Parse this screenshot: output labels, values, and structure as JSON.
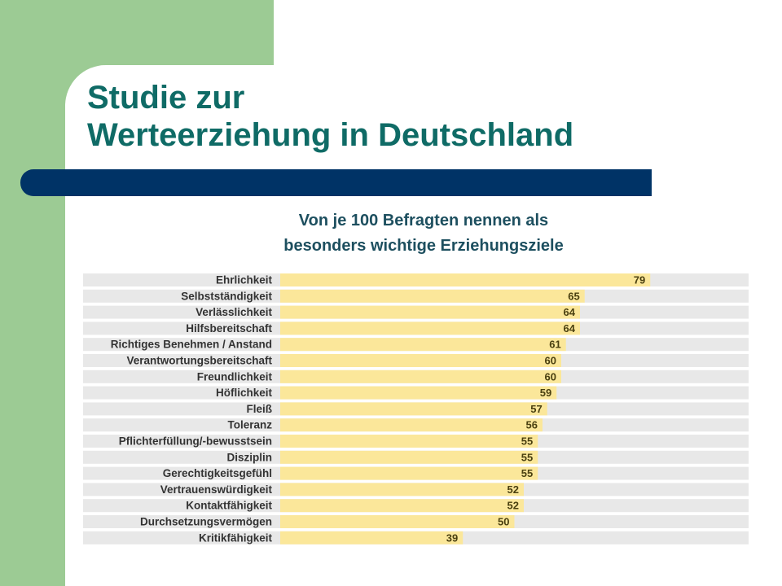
{
  "title_lines": [
    "Studie zur",
    "Werteerziehung in Deutschland"
  ],
  "subtitle_lines": [
    "Von je 100 Befragten nennen als",
    "besonders wichtige Erziehungsziele"
  ],
  "colors": {
    "sidebar_green": "#9ccb94",
    "title_teal": "#0f6b66",
    "divider_navy": "#003366",
    "bar_yellow": "#fbe79a",
    "row_gray": "#e8e8e8"
  },
  "chart_data": {
    "type": "bar",
    "orientation": "horizontal",
    "categories": [
      "Ehrlichkeit",
      "Selbstständigkeit",
      "Verlässlichkeit",
      "Hilfsbereitschaft",
      "Richtiges Benehmen / Anstand",
      "Verantwortungsbereitschaft",
      "Freundlichkeit",
      "Höflichkeit",
      "Fleiß",
      "Toleranz",
      "Pflichterfüllung/-bewusstsein",
      "Disziplin",
      "Gerechtigkeitsgefühl",
      "Vertrauenswürdigkeit",
      "Kontaktfähigkeit",
      "Durchsetzungsvermögen",
      "Kritikfähigkeit"
    ],
    "values": [
      79,
      65,
      64,
      64,
      61,
      60,
      60,
      59,
      57,
      56,
      55,
      55,
      55,
      52,
      52,
      50,
      39
    ],
    "value_labels": [
      "79",
      "65",
      "64",
      "64",
      "61",
      "60",
      "60",
      "59",
      "57",
      "56",
      "55",
      "55",
      "55",
      "52",
      "52",
      "50",
      "39"
    ],
    "xlim": [
      0,
      100
    ],
    "grid": false,
    "legend": "none"
  }
}
